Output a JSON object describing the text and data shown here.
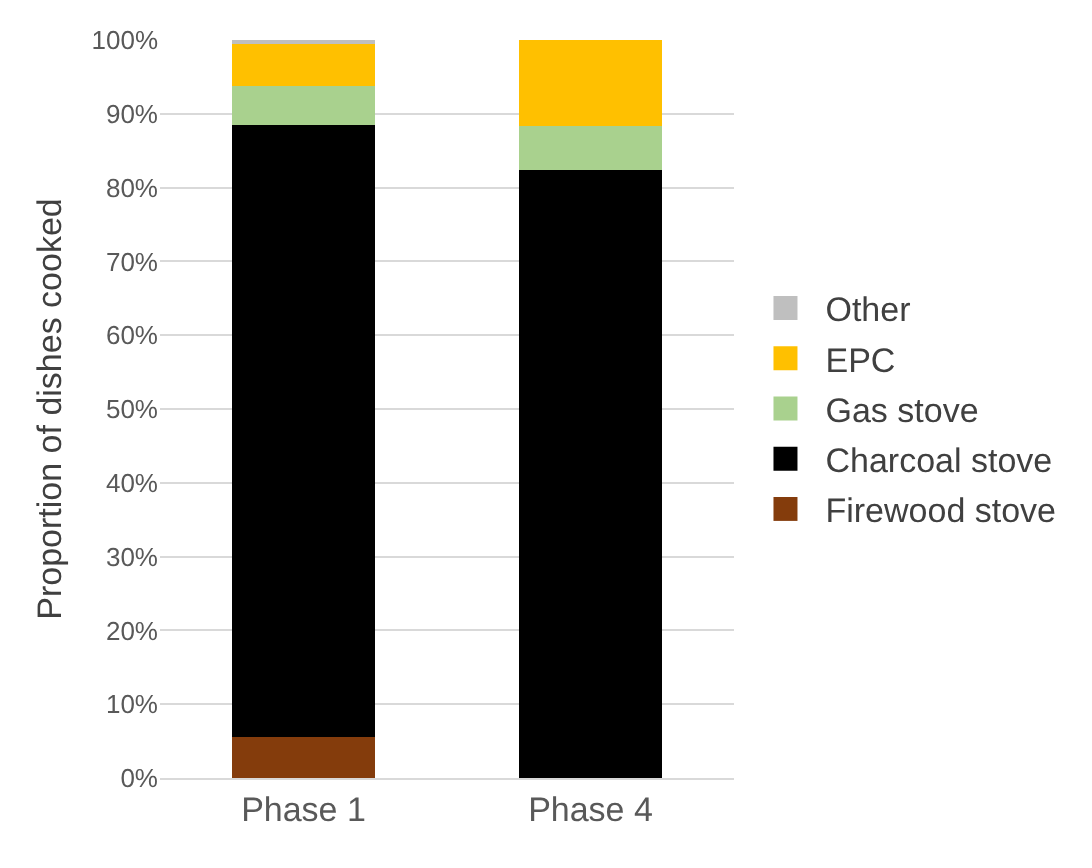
{
  "chart_data": {
    "type": "bar",
    "stacked": true,
    "ylabel": "Proportion of dishes cooked",
    "categories": [
      "Phase 1",
      "Phase 4"
    ],
    "series": [
      {
        "name": "Firewood stove",
        "color": "#843c0c",
        "values": [
          5.5,
          0
        ]
      },
      {
        "name": "Charcoal stove",
        "color": "#000000",
        "values": [
          83,
          82.4
        ]
      },
      {
        "name": "Gas stove",
        "color": "#a9d18e",
        "values": [
          5.3,
          5.9
        ]
      },
      {
        "name": "EPC",
        "color": "#ffc000",
        "values": [
          5.7,
          11.7
        ]
      },
      {
        "name": "Other",
        "color": "#bfbfbf",
        "values": [
          0.5,
          0
        ]
      }
    ],
    "ylim": [
      0,
      100
    ],
    "yticks": [
      {
        "value": 0,
        "label": "0%"
      },
      {
        "value": 10,
        "label": "10%"
      },
      {
        "value": 20,
        "label": "20%"
      },
      {
        "value": 30,
        "label": "30%"
      },
      {
        "value": 40,
        "label": "40%"
      },
      {
        "value": 50,
        "label": "50%"
      },
      {
        "value": 60,
        "label": "60%"
      },
      {
        "value": 70,
        "label": "70%"
      },
      {
        "value": 80,
        "label": "80%"
      },
      {
        "value": 90,
        "label": "90%"
      },
      {
        "value": 100,
        "label": "100%"
      }
    ],
    "grid": "y",
    "legend": "right"
  }
}
